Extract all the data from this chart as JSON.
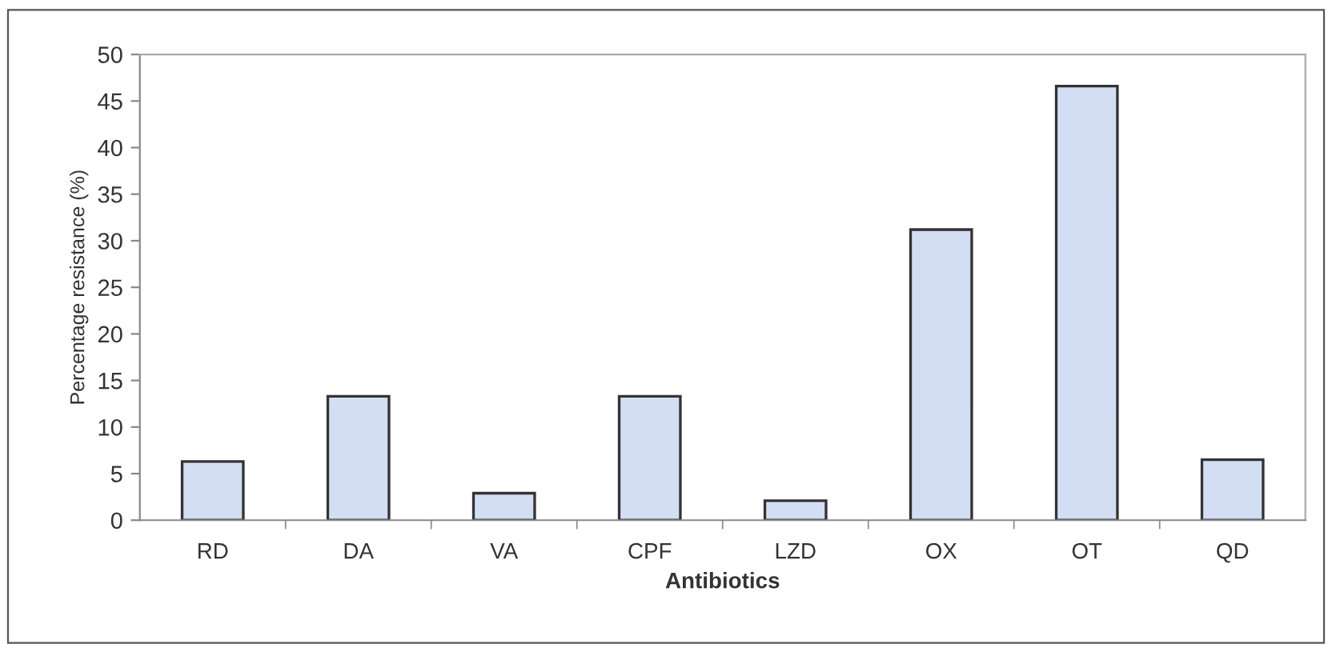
{
  "chart_data": {
    "type": "bar",
    "xlabel": "Antibiotics",
    "ylabel": "Percentage resistance (%)",
    "categories": [
      "RD",
      "DA",
      "VA",
      "CPF",
      "LZD",
      "OX",
      "OT",
      "QD"
    ],
    "values": [
      6.3,
      13.3,
      2.9,
      13.3,
      2.1,
      31.2,
      46.6,
      6.5
    ],
    "color": "#d3def5",
    "ylim": [
      0,
      50
    ],
    "yticks": [
      0,
      5,
      10,
      15,
      20,
      25,
      30,
      35,
      40,
      45,
      50
    ],
    "grid": false
  }
}
